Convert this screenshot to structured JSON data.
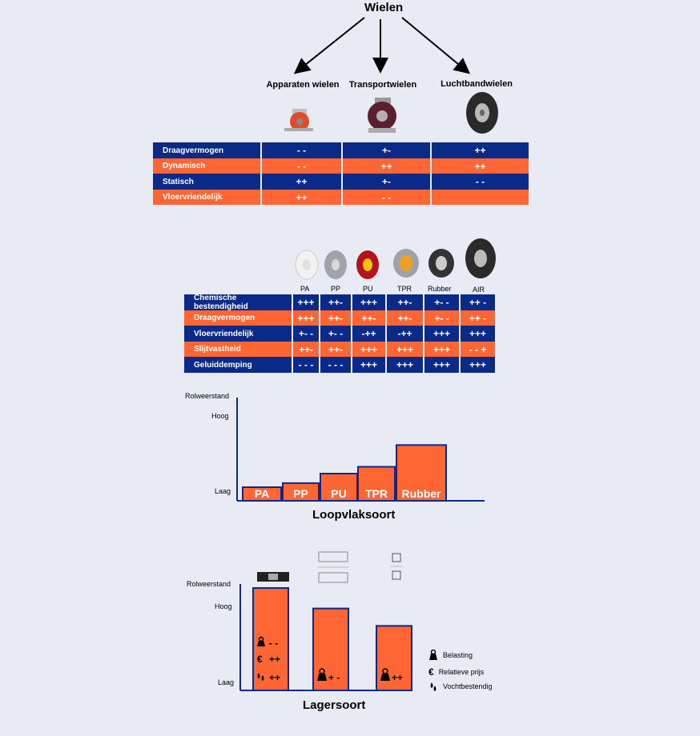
{
  "section1": {
    "title": "Wielen",
    "types": [
      "Apparaten wielen",
      "Transportwielen",
      "Luchtbandwielen"
    ],
    "rows": [
      {
        "label": "Draagvermogen",
        "values": [
          "- -",
          "+-",
          "++"
        ],
        "color": "blue"
      },
      {
        "label": "Dynamisch",
        "values": [
          "- -",
          "++",
          "++"
        ],
        "color": "orange"
      },
      {
        "label": "Statisch",
        "values": [
          "++",
          "+-",
          "- -"
        ],
        "color": "blue"
      },
      {
        "label": "Vloervriendelijk",
        "values": [
          "++",
          "- -",
          ""
        ],
        "color": "orange"
      }
    ]
  },
  "section2": {
    "materials": [
      "PA",
      "PP",
      "PU",
      "TPR",
      "Rubber",
      "AIR"
    ],
    "rows": [
      {
        "label": "Chemische bestendigheid",
        "values": [
          "+++",
          "++-",
          "+++",
          "++-",
          "+- -",
          "++ -"
        ],
        "color": "blue"
      },
      {
        "label": "Draagvermogen",
        "values": [
          "+++",
          "++-",
          "++-",
          "++-",
          "+- -",
          "++ -"
        ],
        "color": "orange"
      },
      {
        "label": "Vloervriendelijk",
        "values": [
          "+- -",
          "+- -",
          "-++",
          "-++",
          "+++",
          "+++"
        ],
        "color": "blue"
      },
      {
        "label": "Slijtvastheid",
        "values": [
          "++-",
          "++-",
          "+++",
          "+++",
          "+++",
          "- - +"
        ],
        "color": "orange"
      },
      {
        "label": "Geluiddemping",
        "values": [
          "- - -",
          "- - -",
          "+++",
          "+++",
          "+++",
          "+++"
        ],
        "color": "blue"
      }
    ]
  },
  "chart1": {
    "ylabel": "Rolweerstand",
    "high": "Hoog",
    "low": "Laag",
    "xlabel": "Loopvlaksoort",
    "bars": [
      {
        "label": "PA",
        "value": 1
      },
      {
        "label": "PP",
        "value": 1.3
      },
      {
        "label": "PU",
        "value": 2
      },
      {
        "label": "TPR",
        "value": 2.5
      },
      {
        "label": "Rubber",
        "value": 4.1
      }
    ],
    "bar_color": "#ff6633",
    "axis_color": "#0a2a8a"
  },
  "chart2": {
    "ylabel": "Rolweerstand",
    "high": "Hoog",
    "low": "Laag",
    "xlabel": "Lagersoort",
    "bars": [
      {
        "value": 100,
        "annotations": [
          "- -",
          "++",
          "++"
        ]
      },
      {
        "value": 80,
        "annotations": [
          "+ -"
        ]
      },
      {
        "value": 63,
        "annotations": [
          "++"
        ]
      }
    ],
    "legend": [
      "Belasting",
      "Relatieve prijs",
      "Vochtbestendig"
    ]
  }
}
